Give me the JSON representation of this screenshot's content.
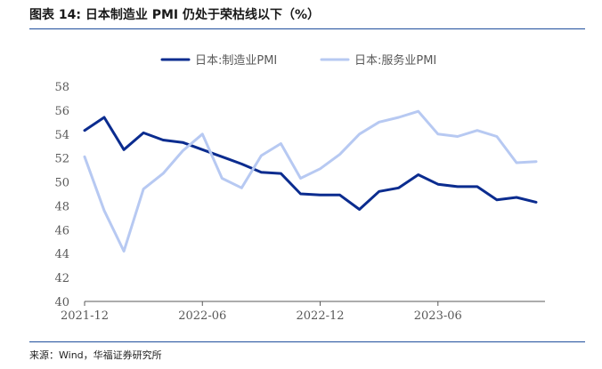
{
  "title": "图表 14:  日本制造业 PMI 仍处于荣枯线以下（%）",
  "source": "来源：Wind，华福证券研究所",
  "chart_data": {
    "type": "line",
    "title": "",
    "xlabel": "",
    "ylabel": "",
    "ylim": [
      40,
      58
    ],
    "yticks": [
      40,
      42,
      44,
      46,
      48,
      50,
      52,
      54,
      56,
      58
    ],
    "x": [
      "2021-12",
      "2022-01",
      "2022-02",
      "2022-03",
      "2022-04",
      "2022-05",
      "2022-06",
      "2022-07",
      "2022-08",
      "2022-09",
      "2022-10",
      "2022-11",
      "2022-12",
      "2023-01",
      "2023-02",
      "2023-03",
      "2023-04",
      "2023-05",
      "2023-06",
      "2023-07",
      "2023-08",
      "2023-09",
      "2023-10",
      "2023-11"
    ],
    "xtick_labels": [
      "2021-12",
      "2022-06",
      "2022-12",
      "2023-06"
    ],
    "grid": false,
    "legend_position": "top",
    "series": [
      {
        "name": "日本:制造业PMI",
        "color": "#0b2c8f",
        "values": [
          54.3,
          55.4,
          52.7,
          54.1,
          53.5,
          53.3,
          52.7,
          52.1,
          51.5,
          50.8,
          50.7,
          49.0,
          48.9,
          48.9,
          47.7,
          49.2,
          49.5,
          50.6,
          49.8,
          49.6,
          49.6,
          48.5,
          48.7,
          48.3
        ]
      },
      {
        "name": "日本:服务业PMI",
        "color": "#b7c9f2",
        "values": [
          52.1,
          47.6,
          44.2,
          49.4,
          50.7,
          52.6,
          54.0,
          50.3,
          49.5,
          52.2,
          53.2,
          50.3,
          51.1,
          52.3,
          54.0,
          55.0,
          55.4,
          55.9,
          54.0,
          53.8,
          54.3,
          53.8,
          51.6,
          51.7
        ]
      }
    ]
  }
}
